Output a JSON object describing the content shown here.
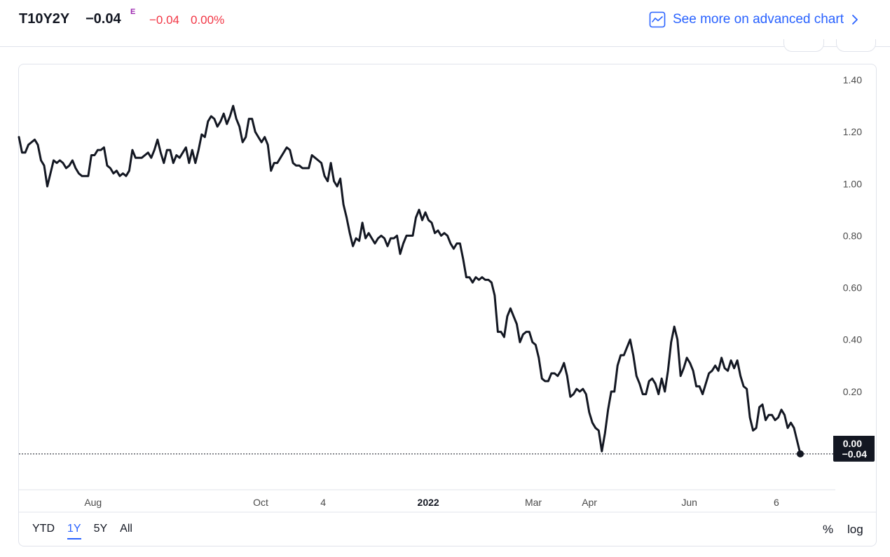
{
  "header": {
    "symbol": "T10Y2Y",
    "last_value": "−0.04",
    "flag": "E",
    "change": "−0.04",
    "change_pct": "0.00%",
    "advanced_link": "See more on advanced chart"
  },
  "colors": {
    "line": "#131722",
    "negative": "#f23645",
    "accent": "#2962ff",
    "flag": "#9c27b0",
    "grid_border": "#e0e3eb"
  },
  "chart_data": {
    "type": "line",
    "title": "",
    "xlabel": "",
    "ylabel": "",
    "ylim": [
      -0.1,
      1.45
    ],
    "grid": false,
    "y_ticks": [
      "1.40",
      "1.20",
      "1.00",
      "0.80",
      "0.60",
      "0.40",
      "0.20",
      "0.00"
    ],
    "x_ticks": [
      "Aug",
      "Oct",
      "4",
      "2022",
      "Mar",
      "Apr",
      "Jun",
      "6"
    ],
    "x_tick_positions": [
      0.115,
      0.375,
      0.472,
      0.635,
      0.798,
      0.885,
      1.04,
      1.175
    ],
    "last_value_label": "−0.04",
    "reference_line_value": -0.04,
    "series": [
      {
        "values": [
          1.18,
          1.12,
          1.12,
          1.15,
          1.16,
          1.17,
          1.15,
          1.09,
          1.07,
          0.99,
          1.04,
          1.09,
          1.08,
          1.09,
          1.08,
          1.06,
          1.07,
          1.09,
          1.06,
          1.04,
          1.03,
          1.03,
          1.03,
          1.11,
          1.11,
          1.13,
          1.13,
          1.14,
          1.07,
          1.06,
          1.04,
          1.05,
          1.03,
          1.04,
          1.03,
          1.05,
          1.13,
          1.1,
          1.1,
          1.1,
          1.11,
          1.12,
          1.1,
          1.13,
          1.17,
          1.12,
          1.08,
          1.13,
          1.13,
          1.08,
          1.11,
          1.1,
          1.12,
          1.14,
          1.08,
          1.13,
          1.08,
          1.13,
          1.19,
          1.18,
          1.24,
          1.26,
          1.25,
          1.22,
          1.24,
          1.27,
          1.23,
          1.26,
          1.3,
          1.25,
          1.22,
          1.16,
          1.18,
          1.25,
          1.25,
          1.2,
          1.18,
          1.16,
          1.18,
          1.15,
          1.05,
          1.08,
          1.08,
          1.1,
          1.12,
          1.14,
          1.13,
          1.08,
          1.07,
          1.07,
          1.06,
          1.06,
          1.06,
          1.11,
          1.1,
          1.09,
          1.08,
          1.03,
          1.01,
          1.08,
          1.01,
          0.99,
          1.02,
          0.92,
          0.87,
          0.81,
          0.76,
          0.79,
          0.78,
          0.85,
          0.79,
          0.81,
          0.79,
          0.77,
          0.79,
          0.8,
          0.79,
          0.76,
          0.79,
          0.79,
          0.8,
          0.73,
          0.77,
          0.8,
          0.8,
          0.8,
          0.87,
          0.9,
          0.86,
          0.89,
          0.86,
          0.85,
          0.81,
          0.82,
          0.8,
          0.81,
          0.8,
          0.77,
          0.75,
          0.77,
          0.77,
          0.71,
          0.64,
          0.64,
          0.62,
          0.64,
          0.63,
          0.64,
          0.63,
          0.63,
          0.62,
          0.57,
          0.43,
          0.43,
          0.41,
          0.49,
          0.52,
          0.49,
          0.46,
          0.39,
          0.42,
          0.43,
          0.43,
          0.39,
          0.38,
          0.33,
          0.25,
          0.24,
          0.24,
          0.27,
          0.27,
          0.26,
          0.28,
          0.31,
          0.26,
          0.18,
          0.19,
          0.21,
          0.2,
          0.21,
          0.19,
          0.12,
          0.08,
          0.06,
          0.05,
          -0.03,
          0.04,
          0.13,
          0.2,
          0.2,
          0.3,
          0.34,
          0.34,
          0.37,
          0.4,
          0.34,
          0.26,
          0.23,
          0.19,
          0.19,
          0.24,
          0.25,
          0.23,
          0.19,
          0.25,
          0.2,
          0.28,
          0.39,
          0.45,
          0.4,
          0.26,
          0.29,
          0.33,
          0.31,
          0.28,
          0.22,
          0.22,
          0.19,
          0.23,
          0.27,
          0.28,
          0.3,
          0.28,
          0.33,
          0.29,
          0.28,
          0.32,
          0.29,
          0.32,
          0.26,
          0.22,
          0.21,
          0.1,
          0.05,
          0.06,
          0.14,
          0.15,
          0.09,
          0.11,
          0.11,
          0.09,
          0.1,
          0.13,
          0.11,
          0.06,
          0.08,
          0.06,
          0.01,
          -0.04
        ]
      }
    ]
  },
  "ranges": {
    "items": [
      "YTD",
      "1Y",
      "5Y",
      "All"
    ],
    "active": "1Y"
  },
  "options": {
    "percent": "%",
    "log": "log"
  }
}
